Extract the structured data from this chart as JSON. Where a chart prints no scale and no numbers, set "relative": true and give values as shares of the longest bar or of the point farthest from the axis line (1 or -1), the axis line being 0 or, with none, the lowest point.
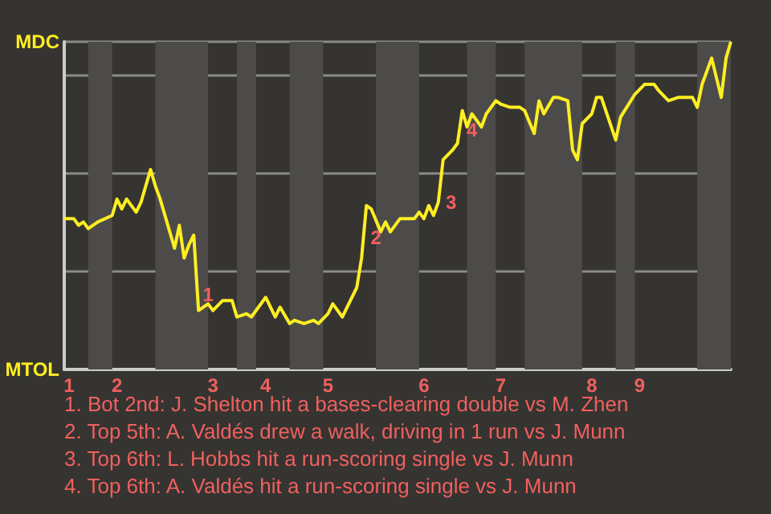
{
  "chart_data": {
    "type": "line",
    "relative": true,
    "categories": [
      null,
      "1",
      null,
      null,
      null,
      null,
      null,
      null,
      null,
      null,
      null,
      "2",
      null,
      null,
      null,
      null,
      null,
      null,
      null,
      null,
      null,
      null,
      null,
      null,
      null,
      null,
      null,
      null,
      null,
      null,
      null,
      "3",
      null,
      null,
      null,
      null,
      null,
      null,
      null,
      null,
      null,
      null,
      "4",
      null,
      null,
      null,
      null,
      null,
      null,
      null,
      null,
      null,
      null,
      null,
      null,
      "5",
      null,
      null,
      null,
      null,
      null,
      null,
      null,
      null,
      null,
      null,
      null,
      null,
      null,
      null,
      null,
      null,
      null,
      null,
      null,
      "6",
      null,
      null,
      null,
      null,
      null,
      null,
      null,
      null,
      null,
      null,
      null,
      null,
      null,
      null,
      null,
      "7",
      null,
      null,
      null,
      null,
      null,
      null,
      null,
      null,
      null,
      null,
      null,
      null,
      null,
      null,
      null,
      null,
      null,
      null,
      "8",
      null,
      null,
      null,
      null,
      null,
      null,
      null,
      null,
      null,
      "9",
      null,
      null,
      null,
      null,
      null,
      null,
      null,
      null,
      null,
      null,
      null,
      null,
      null,
      null,
      null,
      null,
      null,
      null,
      null
    ],
    "series": [
      {
        "color": "#ffee22",
        "values": [
          0.46,
          null,
          0.46,
          0.44,
          0.45,
          0.43,
          null,
          0.45,
          null,
          null,
          0.47,
          0.52,
          0.49,
          0.52,
          null,
          0.48,
          0.51,
          null,
          0.61,
          0.56,
          0.52,
          null,
          null,
          0.37,
          0.44,
          0.34,
          0.38,
          0.41,
          0.18,
          null,
          0.2,
          0.18,
          null,
          0.21,
          null,
          0.21,
          0.16,
          null,
          0.17,
          0.16,
          null,
          null,
          0.22,
          null,
          0.16,
          0.19,
          null,
          0.14,
          0.15,
          null,
          0.14,
          null,
          0.15,
          0.14,
          null,
          0.17,
          0.2,
          null,
          0.16,
          0.19,
          null,
          0.25,
          0.34,
          0.5,
          0.49,
          null,
          0.42,
          0.45,
          0.42,
          null,
          0.46,
          null,
          null,
          0.46,
          0.48,
          0.46,
          0.5,
          0.47,
          0.51,
          0.64,
          null,
          0.67,
          0.69,
          0.79,
          0.74,
          0.78,
          null,
          0.74,
          0.78,
          null,
          0.82,
          0.81,
          null,
          0.8,
          null,
          0.8,
          0.79,
          null,
          0.72,
          0.82,
          0.78,
          null,
          0.83,
          0.83,
          null,
          0.82,
          0.67,
          0.64,
          0.75,
          null,
          0.78,
          0.83,
          0.83,
          null,
          null,
          0.7,
          0.77,
          null,
          null,
          0.84,
          null,
          0.87,
          null,
          0.87,
          0.85,
          null,
          0.82,
          null,
          0.83,
          null,
          null,
          0.83,
          0.8,
          0.87,
          null,
          0.95,
          0.89,
          0.83,
          0.95,
          1
        ]
      }
    ],
    "grid": "y",
    "marker": "none",
    "annotations": [
      "MDC",
      "MTOL",
      "1",
      "2",
      "3",
      "4",
      "1. Bot 2nd: J. Shelton hit a bases-clearing double vs M. Zhen",
      "2. Top 5th: A. Valdés drew a walk, driving in 1 run vs J. Munn",
      "3. Top 6th: L. Hobbs hit a run-scoring single vs J. Munn",
      "4. Top 6th: A. Valdés hit a run-scoring single vs J. Munn"
    ]
  }
}
